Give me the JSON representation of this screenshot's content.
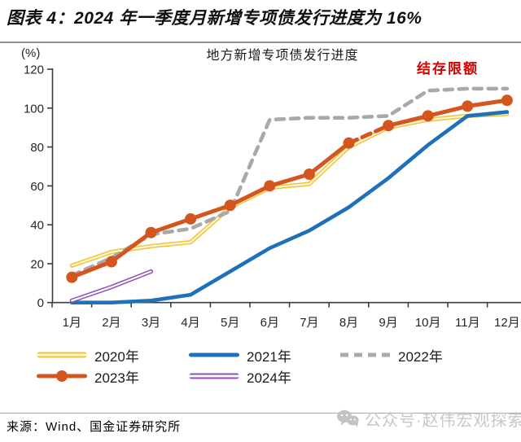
{
  "header": {
    "title": "图表 4：2024 年一季度月新增专项债发行进度为 16%"
  },
  "footer": {
    "source": "来源：Wind、国金证券研究所",
    "watermark": "公众号·赵伟宏观探索"
  },
  "chart_data": {
    "type": "line",
    "title": "地方新增专项债发行进度",
    "y_unit_label": "(%)",
    "annotation": {
      "text": "结存限额",
      "color": "#d40000"
    },
    "categories": [
      "1月",
      "2月",
      "3月",
      "4月",
      "5月",
      "6月",
      "7月",
      "8月",
      "9月",
      "10月",
      "11月",
      "12月"
    ],
    "y_ticks": [
      0,
      20,
      40,
      60,
      80,
      100,
      120
    ],
    "ylim": [
      0,
      120
    ],
    "grid": false,
    "legend_position": "bottom",
    "series": [
      {
        "name": "2020年",
        "style": "double",
        "color": "#f0c33c",
        "inner_color": "#fff6d0",
        "values": [
          19,
          26,
          29,
          31,
          49,
          59,
          61,
          80,
          90,
          94,
          96,
          97
        ]
      },
      {
        "name": "2021年",
        "style": "solid",
        "color": "#1e71b8",
        "values": [
          0,
          0,
          1,
          4,
          16,
          28,
          37,
          49,
          64,
          81,
          96,
          98
        ]
      },
      {
        "name": "2022年",
        "style": "dashed",
        "color": "#a9a9a9",
        "values": [
          14,
          23,
          35,
          38,
          47,
          94,
          95,
          95,
          96,
          109,
          110,
          110
        ]
      },
      {
        "name": "2023年",
        "style": "line-marker",
        "color": "#d4561e",
        "dash_segment": [
          7,
          8
        ],
        "values": [
          13,
          21,
          36,
          43,
          50,
          60,
          66,
          82,
          91,
          96,
          101,
          104
        ]
      },
      {
        "name": "2024年",
        "style": "double",
        "color": "#8e4fb5",
        "inner_color": "#ffffff",
        "values": [
          1,
          8,
          16
        ]
      }
    ]
  }
}
